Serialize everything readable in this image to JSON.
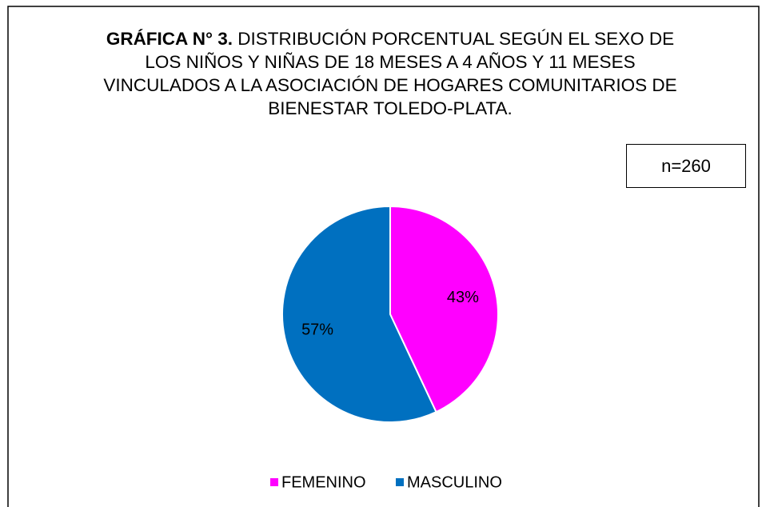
{
  "chart_data": {
    "type": "pie",
    "title": {
      "bold": "GRÁFICA N° 3.",
      "text": "DISTRIBUCIÓN PORCENTUAL SEGÚN EL SEXO DE LOS NIÑOS Y NIÑAS DE 18 MESES A 4 AÑOS Y 11 MESES VINCULADOS A LA ASOCIACIÓN DE HOGARES COMUNITARIOS DE BIENESTAR TOLEDO-PLATA."
    },
    "annotation": "n=260",
    "categories": [
      "FEMENINO",
      "MASCULINO"
    ],
    "values": [
      43,
      57
    ],
    "value_labels": [
      "43%",
      "57%"
    ],
    "colors": [
      "#ff00ff",
      "#0070c0"
    ],
    "legend": "bottom"
  }
}
